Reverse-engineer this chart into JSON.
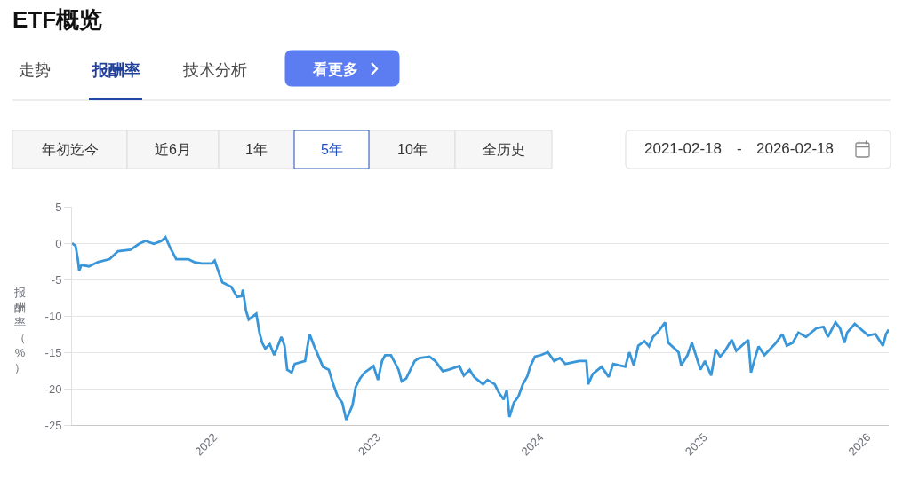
{
  "chart_data": {
    "type": "line",
    "title": "ETF概览",
    "ylabel": "报酬率（%）",
    "annotations": [
      "走势",
      "报酬率",
      "技术分析",
      "看更多",
      "年初迄今",
      "近6月",
      "1年",
      "5年",
      "10年",
      "全历史",
      "2021-02-18",
      "-",
      "2026-02-18"
    ],
    "x": [
      "2021-02-18",
      "2021-02-26",
      "2021-03-03",
      "2021-03-06",
      "2021-03-11",
      "2021-03-28",
      "2021-04-17",
      "2021-05-13",
      "2021-06-01",
      "2021-06-29",
      "2021-07-18",
      "2021-08-01",
      "2021-08-20",
      "2021-09-06",
      "2021-09-15",
      "2021-09-26",
      "2021-10-09",
      "2021-11-05",
      "2021-11-18",
      "2021-12-05",
      "2021-12-28",
      "2022-01-03",
      "2022-01-13",
      "2022-01-20",
      "2022-02-09",
      "2022-02-22",
      "2022-03-04",
      "2022-03-07",
      "2022-03-14",
      "2022-03-20",
      "2022-04-06",
      "2022-04-13",
      "2022-04-19",
      "2022-04-26",
      "2022-05-06",
      "2022-05-16",
      "2022-06-01",
      "2022-06-08",
      "2022-06-14",
      "2022-06-24",
      "2022-07-01",
      "2022-07-24",
      "2022-08-03",
      "2022-08-13",
      "2022-09-02",
      "2022-09-15",
      "2022-09-25",
      "2022-10-05",
      "2022-10-15",
      "2022-10-24",
      "2022-11-07",
      "2022-11-14",
      "2022-11-24",
      "2022-12-04",
      "2022-12-24",
      "2023-01-03",
      "2023-01-12",
      "2023-01-19",
      "2023-02-01",
      "2023-02-18",
      "2023-02-25",
      "2023-03-07",
      "2023-03-26",
      "2023-04-05",
      "2023-04-28",
      "2023-05-11",
      "2023-05-28",
      "2023-06-10",
      "2023-07-04",
      "2023-07-14",
      "2023-07-27",
      "2023-08-06",
      "2023-08-26",
      "2023-09-05",
      "2023-09-21",
      "2023-10-01",
      "2023-10-11",
      "2023-10-18",
      "2023-10-24",
      "2023-11-03",
      "2023-11-13",
      "2023-11-23",
      "2023-12-03",
      "2023-12-10",
      "2023-12-20",
      "2024-01-02",
      "2024-01-18",
      "2024-02-01",
      "2024-02-14",
      "2024-02-26",
      "2024-03-28",
      "2024-04-13",
      "2024-04-17",
      "2024-04-27",
      "2024-05-17",
      "2024-06-02",
      "2024-06-12",
      "2024-07-09",
      "2024-07-18",
      "2024-07-28",
      "2024-08-07",
      "2024-08-21",
      "2024-08-31",
      "2024-09-09",
      "2024-09-19",
      "2024-10-06",
      "2024-10-13",
      "2024-11-05",
      "2024-11-11",
      "2024-11-25",
      "2024-12-05",
      "2024-12-24",
      "2025-01-03",
      "2025-01-17",
      "2025-01-27",
      "2025-02-06",
      "2025-02-15",
      "2025-03-04",
      "2025-03-14",
      "2025-04-10",
      "2025-04-16",
      "2025-04-26",
      "2025-05-03",
      "2025-05-16",
      "2025-06-11",
      "2025-06-25",
      "2025-07-05",
      "2025-07-18",
      "2025-07-31",
      "2025-08-17",
      "2025-09-09",
      "2025-09-25",
      "2025-10-05",
      "2025-10-15",
      "2025-10-22",
      "2025-11-01",
      "2025-11-11",
      "2025-11-17",
      "2025-12-04",
      "2026-01-03",
      "2026-01-19",
      "2026-02-05",
      "2026-02-12",
      "2026-02-18"
    ],
    "series": [
      {
        "color": "#3996d8",
        "values": [
          0,
          -0.4,
          -2.2,
          -3.8,
          -3.0,
          -3.2,
          -2.6,
          -2.2,
          -1.1,
          -0.9,
          -0.1,
          0.3,
          -0.1,
          0.3,
          0.8,
          -0.7,
          -2.2,
          -2.2,
          -2.6,
          -2.8,
          -2.8,
          -2.4,
          -4.2,
          -5.4,
          -6.0,
          -7.4,
          -7.3,
          -6.4,
          -9.3,
          -10.5,
          -9.7,
          -12.3,
          -13.7,
          -14.5,
          -13.9,
          -15.4,
          -12.9,
          -14.1,
          -17.4,
          -17.8,
          -16.6,
          -16.2,
          -12.5,
          -14.1,
          -17.0,
          -17.4,
          -19.4,
          -21.1,
          -21.9,
          -24.3,
          -22.3,
          -19.8,
          -18.6,
          -17.8,
          -16.9,
          -18.8,
          -16.2,
          -15.4,
          -15.4,
          -17.4,
          -19.0,
          -18.6,
          -16.2,
          -15.8,
          -15.6,
          -16.2,
          -17.6,
          -17.4,
          -16.9,
          -18.2,
          -17.4,
          -18.4,
          -19.4,
          -18.8,
          -19.4,
          -20.6,
          -21.5,
          -20.2,
          -23.9,
          -21.9,
          -21.1,
          -19.4,
          -18.3,
          -16.9,
          -15.6,
          -15.4,
          -15.0,
          -16.2,
          -15.8,
          -16.6,
          -16.2,
          -16.2,
          -19.4,
          -18.0,
          -17.0,
          -18.4,
          -16.6,
          -17.0,
          -15.0,
          -16.8,
          -14.1,
          -13.5,
          -14.2,
          -12.9,
          -12.3,
          -10.9,
          -13.7,
          -15.0,
          -16.8,
          -15.4,
          -13.7,
          -17.4,
          -16.2,
          -18.2,
          -14.6,
          -15.6,
          -15.0,
          -13.3,
          -14.8,
          -13.3,
          -17.8,
          -15.6,
          -14.2,
          -15.4,
          -13.7,
          -12.5,
          -14.1,
          -13.7,
          -12.3,
          -12.9,
          -11.7,
          -11.5,
          -12.9,
          -11.7,
          -10.9,
          -11.7,
          -13.7,
          -12.3,
          -11.1,
          -12.7,
          -12.5,
          -14.1,
          -12.5,
          -11.9
        ]
      }
    ],
    "xlim": [
      "2021-02-18",
      "2026-02-18"
    ],
    "xticks": [
      {
        "value": "2022-01-01",
        "label": "2022"
      },
      {
        "value": "2023-01-01",
        "label": "2023"
      },
      {
        "value": "2024-01-01",
        "label": "2024"
      },
      {
        "value": "2025-01-01",
        "label": "2025"
      },
      {
        "value": "2026-01-01",
        "label": "2026"
      }
    ],
    "ylim": [
      -25,
      5
    ],
    "yticks": [
      5,
      0,
      -5,
      -10,
      -15,
      -20,
      -25
    ],
    "grid": "y",
    "marker": "none",
    "line_style": "solid"
  }
}
